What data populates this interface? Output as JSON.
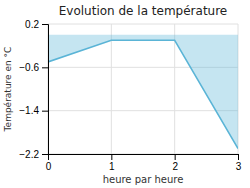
{
  "chart_data": {
    "type": "area",
    "title": "Evolution de la température",
    "xlabel": "heure par heure",
    "ylabel": "Température en °C",
    "x": [
      0,
      1,
      2,
      3
    ],
    "values": [
      -0.5,
      -0.1,
      -0.1,
      -2.1
    ],
    "xlim": [
      0,
      3
    ],
    "ylim": [
      -2.2,
      0.2
    ],
    "xticks": [
      0,
      1,
      2,
      3
    ],
    "yticks": [
      0.2,
      -0.6,
      -1.4,
      -2.2
    ],
    "color": "#5ab4d6",
    "grid": true
  }
}
